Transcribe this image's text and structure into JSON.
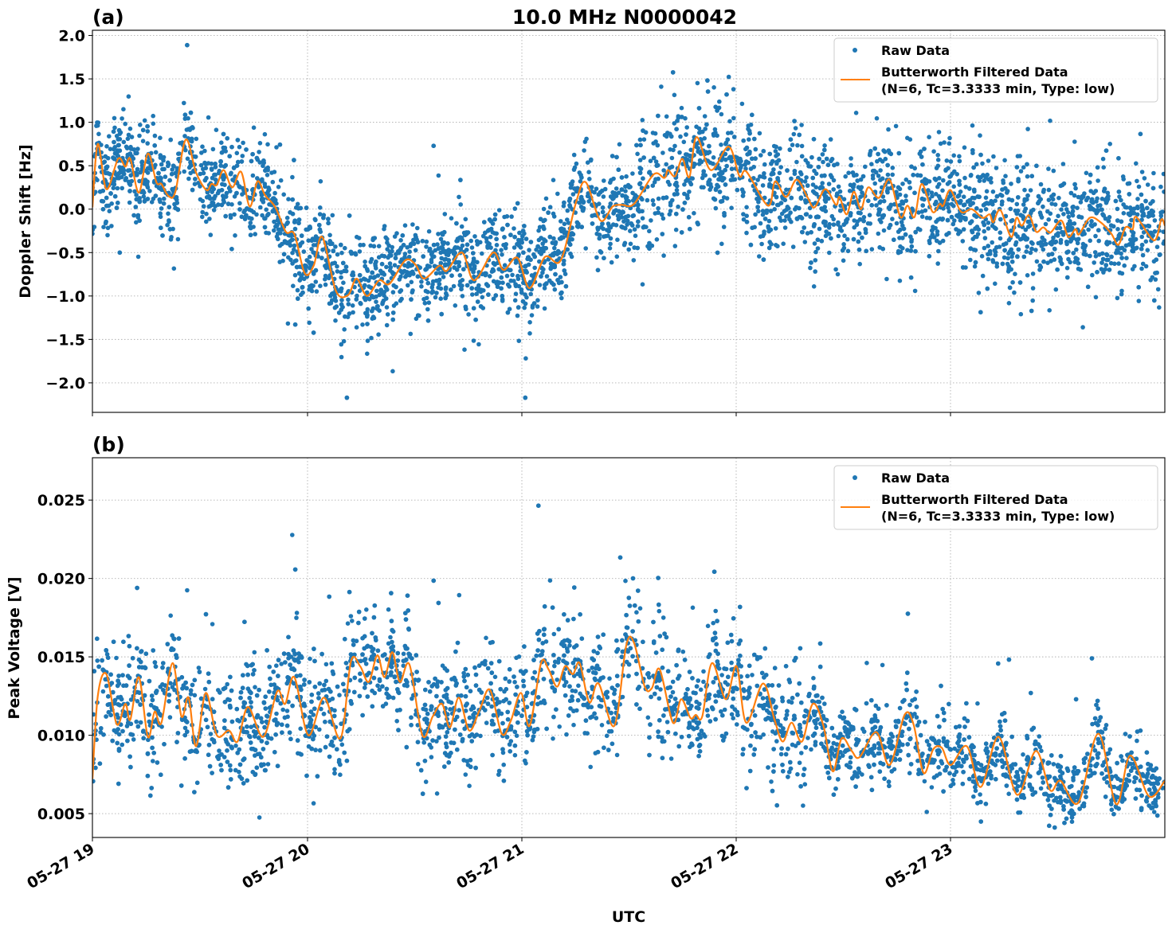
{
  "title": "10.0 MHz N0000042",
  "xlabel": "UTC",
  "x_tick_labels": [
    "05-27 19",
    "05-27 20",
    "05-27 21",
    "05-27 22",
    "05-27 23"
  ],
  "colors": {
    "raw": "#1f77b4",
    "filtered": "#ff7f0e"
  },
  "chart_data": [
    {
      "type": "scatter+line",
      "panel_label": "(a)",
      "ylabel": "Doppler Shift [Hz]",
      "x_unit": "minutes after 05-27 19:00 UTC",
      "xlim": [
        0,
        300
      ],
      "ylim": [
        -2.34,
        2.06
      ],
      "y_ticks": [
        "2.0",
        "1.5",
        "1.0",
        "0.5",
        "0.0",
        "−0.5",
        "−1.0",
        "−1.5",
        "−2.0"
      ],
      "y_tick_values": [
        2.0,
        1.5,
        1.0,
        0.5,
        0.0,
        -0.5,
        -1.0,
        -1.5,
        -2.0
      ],
      "grid": true,
      "legend": {
        "placement": "top-right",
        "entries": [
          "Raw Data",
          "Butterworth Filtered Data",
          "(N=6, Tc=3.3333 min, Type: low)"
        ]
      },
      "series": [
        {
          "name": "Raw Data",
          "style": "points"
        },
        {
          "name": "Butterworth Filtered Data",
          "style": "line",
          "x": [
            0,
            1.5,
            3.9,
            7.2,
            9.2,
            10.6,
            13,
            15.5,
            17.9,
            19.3,
            21.3,
            23.2,
            26.1,
            29,
            31.9,
            33.3,
            34.8,
            36.7,
            39.1,
            41.6,
            44,
            46.2,
            48.3,
            51.2,
            54.1,
            56.5,
            59.4,
            61.9,
            64.3,
            68.1,
            71.5,
            73.9,
            76.8,
            80.2,
            83.1,
            87.5,
            90.4,
            92.8,
            97.1,
            99.1,
            103.4,
            106.8,
            112.1,
            115,
            118.9,
            122.3,
            126.6,
            131,
            135.3,
            138,
            142.1,
            145.5,
            148,
            151.5,
            157,
            160,
            161,
            163,
            165,
            167,
            169,
            173,
            178,
            181,
            183,
            189,
            191,
            194,
            197,
            200,
            202,
            205,
            208,
            209,
            211,
            213,
            215,
            217,
            220,
            223,
            226,
            228,
            230,
            232,
            235,
            237,
            238,
            240,
            243,
            246,
            249,
            251,
            252,
            254,
            257,
            258.5,
            260,
            262,
            264,
            266,
            268,
            271,
            273,
            275,
            276,
            279,
            282,
            285,
            287,
            289,
            291,
            292,
            297,
            299,
            300
          ],
          "y": [
            0.02,
            0.75,
            0.23,
            0.58,
            0.49,
            0.58,
            0.19,
            0.64,
            0.31,
            0.29,
            0.15,
            0.2,
            0.8,
            0.42,
            0.22,
            0.29,
            0.28,
            0.45,
            0.25,
            0.43,
            0.03,
            0.32,
            0.16,
            0.02,
            -0.26,
            -0.29,
            -0.74,
            -0.65,
            -0.32,
            -0.94,
            -0.99,
            -0.8,
            -1.0,
            -0.82,
            -0.86,
            -0.59,
            -0.64,
            -0.8,
            -0.65,
            -0.71,
            -0.5,
            -0.82,
            -0.5,
            -0.7,
            -0.56,
            -0.91,
            -0.55,
            -0.59,
            0.08,
            0.31,
            -0.13,
            0.03,
            0.05,
            0.06,
            0.4,
            0.36,
            0.45,
            0.38,
            0.58,
            0.37,
            0.83,
            0.45,
            0.72,
            0.38,
            0.43,
            0.04,
            0.32,
            0.14,
            0.34,
            0.14,
            0.02,
            0.23,
            0.05,
            0.14,
            -0.06,
            0.2,
            0.0,
            0.25,
            0.13,
            0.34,
            -0.09,
            0.04,
            -0.09,
            0.29,
            -0.03,
            0.06,
            0.04,
            0.22,
            -0.03,
            0.0,
            -0.1,
            -0.06,
            -0.15,
            -0.01,
            -0.32,
            -0.1,
            -0.19,
            -0.07,
            -0.26,
            -0.21,
            -0.27,
            -0.13,
            -0.32,
            -0.23,
            -0.29,
            -0.1,
            -0.15,
            -0.28,
            -0.41,
            -0.21,
            -0.23,
            -0.09,
            -0.36,
            -0.12,
            -0.19
          ]
        }
      ]
    },
    {
      "type": "scatter+line",
      "panel_label": "(b)",
      "ylabel": "Peak Voltage [V]",
      "x_unit": "minutes after 05-27 19:00 UTC",
      "xlim": [
        0,
        300
      ],
      "ylim": [
        0.00348,
        0.0277
      ],
      "y_ticks": [
        "0.025",
        "0.020",
        "0.015",
        "0.010",
        "0.005"
      ],
      "y_tick_values": [
        0.025,
        0.02,
        0.015,
        0.01,
        0.005
      ],
      "grid": true,
      "legend": {
        "placement": "top-right",
        "entries": [
          "Raw Data",
          "Butterworth Filtered Data",
          "(N=6, Tc=3.3333 min, Type: low)"
        ]
      },
      "series": [
        {
          "name": "Raw Data",
          "style": "points"
        },
        {
          "name": "Butterworth Filtered Data",
          "style": "line",
          "x": [
            0,
            1.5,
            3.9,
            6.8,
            9.2,
            10.6,
            13,
            15.5,
            17.4,
            19.3,
            22.4,
            24.9,
            26.9,
            29,
            31.7,
            34.8,
            38.2,
            40.6,
            43.5,
            47.8,
            51.7,
            53.9,
            56.5,
            60.4,
            64.8,
            69.4,
            72.3,
            74.9,
            77.3,
            79.7,
            81.7,
            83.9,
            86,
            88.7,
            92.3,
            95.2,
            97.8,
            100,
            102.5,
            105.4,
            108.3,
            111.2,
            114.5,
            117,
            119.9,
            122.3,
            125.5,
            127.6,
            130,
            132.2,
            134.4,
            136.3,
            139,
            141.6,
            146,
            149.3,
            151.5,
            154.5,
            156.5,
            158.7,
            162.4,
            164.7,
            167.3,
            168.8,
            170.6,
            173.3,
            177.2,
            180.2,
            182.9,
            187.6,
            190.8,
            193.1,
            195.6,
            198.5,
            201.5,
            204.5,
            207.1,
            209.6,
            212.4,
            214.6,
            219.3,
            223,
            227.2,
            229.7,
            232.5,
            235.2,
            237.6,
            240.1,
            244.6,
            248.5,
            253.5,
            258.7,
            263.9,
            267.9,
            270.8,
            275.8,
            281.4,
            286.4,
            290.3,
            295.6,
            300
          ],
          "y": [
            0.0072,
            0.0125,
            0.0139,
            0.0107,
            0.012,
            0.011,
            0.0137,
            0.0099,
            0.0115,
            0.0108,
            0.0146,
            0.0112,
            0.0124,
            0.0093,
            0.0127,
            0.01,
            0.0103,
            0.0096,
            0.0118,
            0.0099,
            0.0128,
            0.012,
            0.0137,
            0.01,
            0.0124,
            0.0098,
            0.0147,
            0.0144,
            0.0134,
            0.0151,
            0.0137,
            0.0153,
            0.0134,
            0.0145,
            0.01,
            0.0112,
            0.012,
            0.0105,
            0.0124,
            0.0103,
            0.0116,
            0.0129,
            0.0101,
            0.0109,
            0.0127,
            0.0106,
            0.0146,
            0.0142,
            0.0131,
            0.0144,
            0.0139,
            0.0146,
            0.0121,
            0.0133,
            0.0106,
            0.0157,
            0.0159,
            0.0131,
            0.013,
            0.0142,
            0.0108,
            0.0123,
            0.0111,
            0.0113,
            0.0112,
            0.0146,
            0.0123,
            0.0144,
            0.0108,
            0.0133,
            0.011,
            0.0096,
            0.0108,
            0.0096,
            0.012,
            0.0106,
            0.0077,
            0.0098,
            0.009,
            0.0086,
            0.0102,
            0.0081,
            0.0113,
            0.0107,
            0.0076,
            0.0091,
            0.0092,
            0.0081,
            0.0093,
            0.0067,
            0.0099,
            0.0062,
            0.009,
            0.0065,
            0.0071,
            0.0057,
            0.0101,
            0.0056,
            0.0087,
            0.0061,
            0.0071
          ]
        }
      ]
    }
  ]
}
